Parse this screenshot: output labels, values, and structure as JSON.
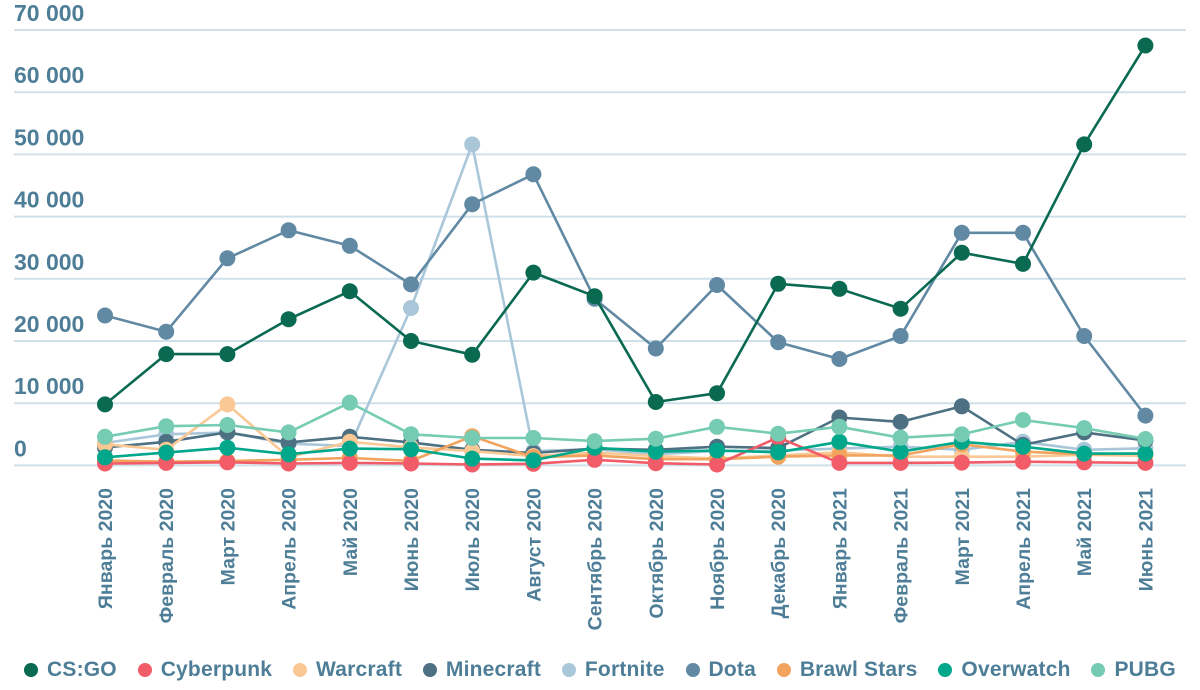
{
  "chart_data": {
    "type": "line",
    "title": "",
    "xlabel": "",
    "ylabel": "",
    "ylim": [
      0,
      70000
    ],
    "grid": true,
    "legend_position": "bottom",
    "grid_color": "#cfe0ea",
    "text_color": "#4e7e97",
    "y_ticks": {
      "values": [
        0,
        10000,
        20000,
        30000,
        40000,
        50000,
        60000,
        70000
      ],
      "labels": [
        "0",
        "10 000",
        "20 000",
        "30 000",
        "40 000",
        "50 000",
        "60 000",
        "70 000"
      ]
    },
    "x_labels": [
      "Январь 2020",
      "Февраль 2020",
      "Март 2020",
      "Апрель 2020",
      "Май 2020",
      "Июнь 2020",
      "Июль 2020",
      "Август 2020",
      "Сентябрь 2020",
      "Октябрь 2020",
      "Ноябрь 2020",
      "Декабрь 2020",
      "Январь 2021",
      "Февраль 2021",
      "Март 2021",
      "Апрель 2021",
      "Май 2021",
      "Июнь 2021"
    ],
    "series": [
      {
        "name": "CS:GO",
        "color": "#0a6a51",
        "values": [
          9800,
          17900,
          17900,
          23500,
          28000,
          20000,
          17800,
          31000,
          27200,
          10200,
          11600,
          29200,
          28400,
          25200,
          34200,
          32400,
          51600,
          67500
        ]
      },
      {
        "name": "Cyberpunk",
        "color": "#f25c68",
        "values": [
          300,
          400,
          500,
          300,
          400,
          300,
          150,
          250,
          900,
          350,
          150,
          4500,
          400,
          400,
          450,
          600,
          500,
          400
        ]
      },
      {
        "name": "Warcraft",
        "color": "#fac895",
        "values": [
          3400,
          2500,
          9800,
          1300,
          3800,
          2900,
          2300,
          1500,
          2050,
          1500,
          1100,
          1600,
          2100,
          1400,
          1400,
          1400,
          1700,
          1550
        ]
      },
      {
        "name": "Minecraft",
        "color": "#4d7083",
        "values": [
          2900,
          3800,
          5300,
          3700,
          4600,
          3700,
          2500,
          2000,
          2700,
          2500,
          3000,
          2800,
          7700,
          7000,
          9500,
          3300,
          5300,
          4000
        ]
      },
      {
        "name": "Fortnite",
        "color": "#a9c7d9",
        "values": [
          3600,
          5000,
          5300,
          3500,
          3100,
          25300,
          51600,
          2300,
          2600,
          1800,
          2300,
          2400,
          2700,
          3000,
          2500,
          3800,
          2500,
          2750
        ]
      },
      {
        "name": "Dota",
        "color": "#6189a3",
        "values": [
          24100,
          21500,
          33300,
          37800,
          35300,
          29100,
          42000,
          46800,
          26800,
          18800,
          29000,
          19800,
          17100,
          20800,
          37400,
          37400,
          20800,
          8000
        ]
      },
      {
        "name": "Brawl Stars",
        "color": "#f2a35e",
        "values": [
          800,
          600,
          700,
          900,
          1200,
          700,
          4700,
          1300,
          1600,
          1000,
          1000,
          1400,
          1600,
          1600,
          3400,
          2200,
          1800,
          1900
        ]
      },
      {
        "name": "Overwatch",
        "color": "#00a78a",
        "values": [
          1300,
          2050,
          2850,
          1800,
          2700,
          2600,
          1100,
          800,
          2850,
          2200,
          2400,
          2100,
          3800,
          2200,
          3800,
          3000,
          1900,
          1900
        ]
      },
      {
        "name": "PUBG",
        "color": "#76ccb2",
        "values": [
          4600,
          6300,
          6500,
          5300,
          10100,
          5000,
          4400,
          4400,
          3900,
          4300,
          6200,
          5100,
          6200,
          4450,
          5000,
          7300,
          6000,
          4250
        ]
      }
    ]
  }
}
